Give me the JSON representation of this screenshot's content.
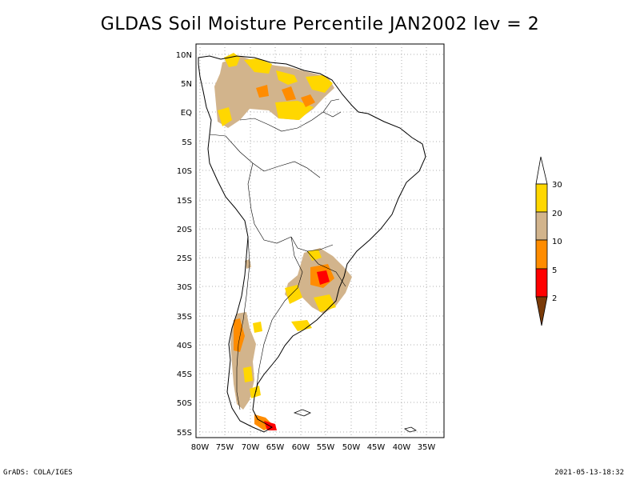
{
  "title": "GLDAS Soil Moisture Percentile JAN2002 lev = 2",
  "axes": {
    "lat_labels": [
      "10N",
      "5N",
      "EQ",
      "5S",
      "10S",
      "15S",
      "20S",
      "25S",
      "30S",
      "35S",
      "40S",
      "45S",
      "50S",
      "55S"
    ],
    "lon_labels": [
      "80W",
      "75W",
      "70W",
      "65W",
      "60W",
      "55W",
      "50W",
      "45W",
      "40W",
      "35W"
    ]
  },
  "legend": {
    "levels": [
      {
        "label": "2",
        "color": "#7a3a08"
      },
      {
        "label": "5",
        "color": "#ff0000"
      },
      {
        "label": "10",
        "color": "#ff8c00"
      },
      {
        "label": "20",
        "color": "#d2b48c"
      },
      {
        "label": "30",
        "color": "#ffd700"
      }
    ]
  },
  "footer": {
    "left": "GrADS: COLA/IGES",
    "right": "2021-05-13-18:32"
  }
}
